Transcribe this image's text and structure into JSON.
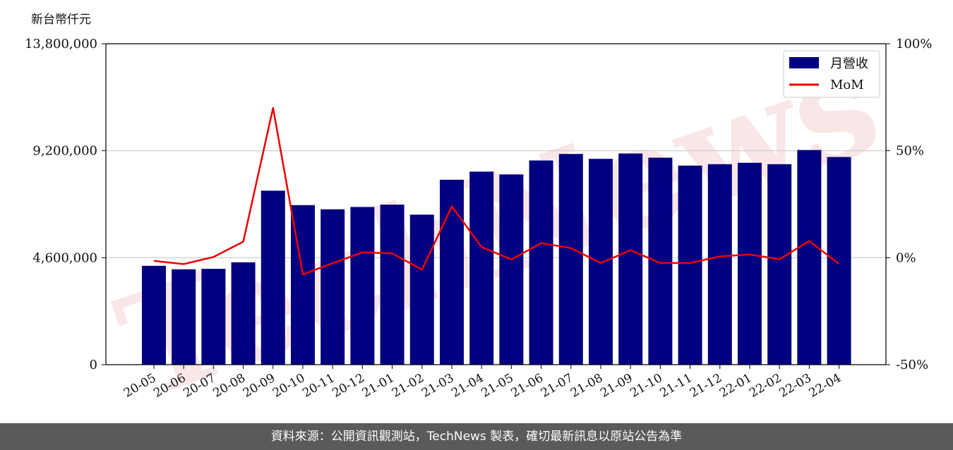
{
  "footer": {
    "source_text": "資料來源：公開資訊觀測站，TechNews 製表，確切最新訊息以原站公告為準"
  },
  "watermark": {
    "text": "TechNews",
    "color": "#f3c9c9"
  },
  "chart_data": {
    "type": "bar",
    "y_unit_label": "新台幣仟元",
    "categories": [
      "20-05",
      "20-06",
      "20-07",
      "20-08",
      "20-09",
      "20-10",
      "20-11",
      "20-12",
      "21-01",
      "21-02",
      "21-03",
      "21-04",
      "21-05",
      "21-06",
      "21-07",
      "21-08",
      "21-09",
      "21-10",
      "21-11",
      "21-12",
      "22-01",
      "22-02",
      "22-03",
      "22-04"
    ],
    "series": [
      {
        "name": "月營收",
        "axis": "left",
        "color": "#000080",
        "values": [
          4250000,
          4100000,
          4120000,
          4400000,
          7480000,
          6860000,
          6680000,
          6780000,
          6880000,
          6450000,
          7950000,
          8300000,
          8180000,
          8780000,
          9060000,
          8850000,
          9080000,
          8900000,
          8560000,
          8620000,
          8680000,
          8620000,
          9230000,
          8930000
        ]
      },
      {
        "name": "MoM",
        "axis": "right",
        "color": "#ee0000",
        "values": [
          -1.5,
          -3.0,
          0.3,
          7.5,
          70.0,
          -7.8,
          -2.6,
          2.5,
          2.0,
          -5.6,
          24.0,
          5.0,
          -0.8,
          6.8,
          4.5,
          -2.5,
          3.5,
          -2.5,
          -2.5,
          0.6,
          1.5,
          -0.7,
          7.8,
          -2.9
        ]
      }
    ],
    "y_left": {
      "ylim": [
        0,
        13800000
      ],
      "ticks": [
        0,
        4600000,
        9200000,
        13800000
      ],
      "tick_labels": [
        "0",
        "4,600,000",
        "9,200,000",
        "13,800,000"
      ]
    },
    "y_right": {
      "ylim": [
        -50,
        100
      ],
      "ticks": [
        -50,
        0,
        50,
        100
      ],
      "tick_labels": [
        "-50%",
        "0%",
        "50%",
        "100%"
      ]
    },
    "grid": "horizontal",
    "legend": "top-right"
  }
}
